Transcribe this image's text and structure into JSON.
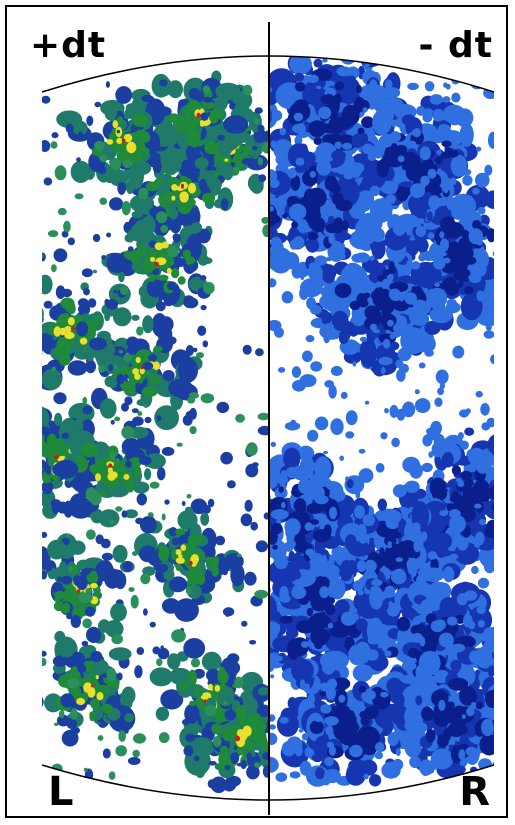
{
  "labels": {
    "top_left": "+dt",
    "top_right": "- dt",
    "bottom_left": "L",
    "bottom_right": "R"
  },
  "colors": {
    "frame": "#000000",
    "background": "#ffffff",
    "left_map_low": "#1a3fa0",
    "left_map_mid": "#1e8a3a",
    "left_map_high": "#e8e02a",
    "left_map_peak": "#c81e1e",
    "right_map_light": "#2f6fe0",
    "right_map_dark": "#0a1e8c"
  }
}
